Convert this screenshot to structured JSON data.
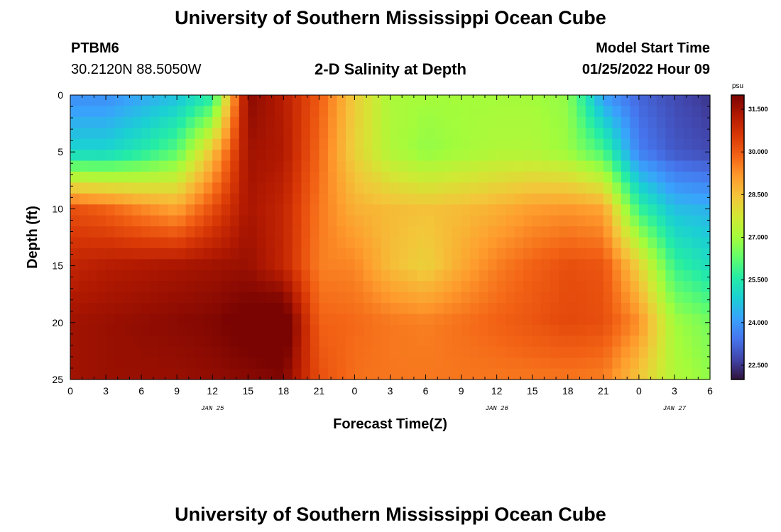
{
  "header": {
    "title": "University of Southern Mississippi Ocean Cube",
    "station": "PTBM6",
    "coords": "30.2120N  88.5050W",
    "subtitle": "2-D Salinity at Depth",
    "start_label": "Model Start Time",
    "start_value": "01/25/2022 Hour 09"
  },
  "footer": {
    "title": "University of Southern Mississippi Ocean Cube"
  },
  "chart_data": {
    "type": "heatmap",
    "title": "2-D Salinity at Depth",
    "xlabel": "Forecast Time(Z)",
    "ylabel": "Depth (ft)",
    "x_hours": [
      0,
      54
    ],
    "x_ticks": [
      "0",
      "3",
      "6",
      "9",
      "12",
      "15",
      "18",
      "21",
      "0",
      "3",
      "6",
      "9",
      "12",
      "15",
      "18",
      "21",
      "0",
      "3",
      "6"
    ],
    "date_labels": [
      {
        "text": "JAN 25",
        "hour": 12
      },
      {
        "text": "JAN 26",
        "hour": 36
      },
      {
        "text": "JAN 27",
        "hour": 51
      }
    ],
    "ylim": [
      0,
      25
    ],
    "y_ticks": [
      0,
      5,
      10,
      15,
      20,
      25
    ],
    "colorbar": {
      "unit": "psu",
      "range": [
        22.0,
        32.0
      ],
      "ticks": [
        22.5,
        24.0,
        25.5,
        27.0,
        28.5,
        30.0,
        31.5
      ],
      "tick_labels": [
        "22.500",
        "24.000",
        "25.500",
        "27.000",
        "28.500",
        "30.000",
        "31.500"
      ],
      "colors": [
        "#30123b",
        "#4145ab",
        "#4675ed",
        "#39a2fc",
        "#1bcfd4",
        "#24eca6",
        "#61fc6c",
        "#a4fc3b",
        "#d1e834",
        "#f3c63a",
        "#fe9b2d",
        "#f36315",
        "#d93806",
        "#b11901",
        "#7a0402"
      ]
    },
    "grid": {
      "depths_ft": [
        0,
        5,
        10,
        15,
        20,
        25
      ],
      "hours": [
        0,
        3,
        6,
        9,
        12,
        15,
        18,
        21,
        24,
        27,
        30,
        33,
        36,
        39,
        42,
        45,
        48,
        51,
        54
      ],
      "salinity": [
        [
          23.8,
          23.8,
          24.2,
          24.6,
          25.5,
          31.8,
          31.2,
          30.0,
          28.3,
          27.1,
          27.0,
          27.0,
          27.0,
          27.0,
          26.8,
          24.0,
          23.2,
          22.8,
          22.5
        ],
        [
          25.0,
          25.0,
          25.5,
          26.2,
          28.5,
          31.5,
          31.3,
          29.8,
          28.2,
          27.2,
          26.8,
          27.0,
          27.2,
          27.2,
          26.9,
          26.0,
          23.6,
          23.0,
          22.8
        ],
        [
          30.2,
          29.9,
          29.4,
          29.0,
          30.2,
          31.4,
          31.0,
          29.6,
          28.8,
          28.6,
          28.5,
          28.6,
          28.8,
          29.1,
          29.2,
          29.0,
          25.8,
          24.6,
          24.4
        ],
        [
          31.0,
          31.2,
          31.3,
          31.4,
          31.5,
          31.6,
          31.0,
          29.5,
          29.4,
          28.6,
          28.2,
          28.9,
          29.5,
          29.9,
          30.2,
          30.1,
          28.2,
          25.8,
          25.2
        ],
        [
          31.5,
          31.6,
          31.7,
          31.8,
          31.9,
          32.2,
          32.5,
          29.9,
          29.8,
          29.6,
          29.5,
          29.7,
          29.9,
          30.1,
          30.3,
          30.2,
          29.3,
          27.0,
          26.5
        ],
        [
          31.5,
          31.6,
          31.6,
          31.6,
          31.7,
          31.8,
          31.9,
          30.2,
          29.7,
          29.6,
          29.6,
          29.6,
          29.6,
          29.6,
          29.6,
          29.5,
          28.4,
          27.2,
          26.8
        ]
      ]
    }
  }
}
